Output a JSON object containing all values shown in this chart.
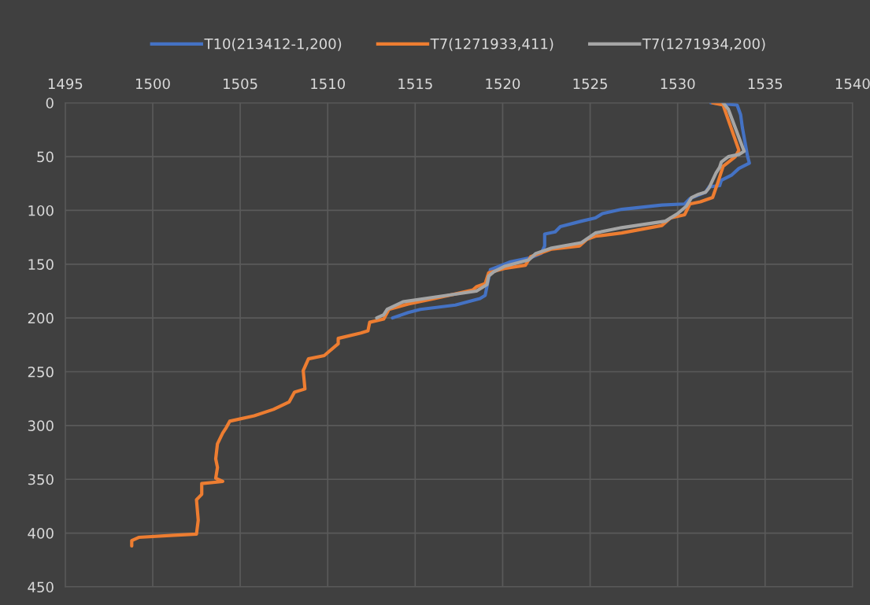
{
  "chart_data": {
    "type": "line",
    "legend": "top",
    "grid": true,
    "marker": "none",
    "line_style": "solid",
    "xlim": [
      1495,
      1540
    ],
    "xticks": [
      1495,
      1500,
      1505,
      1510,
      1515,
      1520,
      1525,
      1530,
      1535,
      1540
    ],
    "ylim": [
      450,
      0
    ],
    "yticks": [
      0,
      50,
      100,
      150,
      200,
      250,
      300,
      350,
      400,
      450
    ],
    "series": [
      {
        "name": "T10(213412-1,200)",
        "color": "#4472c4",
        "x": [
          1531.9,
          1533.4,
          1533.6,
          1533.7,
          1534.0,
          1534.1,
          1533.5,
          1533.1,
          1532.5,
          1532.4,
          1531.8,
          1531.6,
          1530.7,
          1530.4,
          1529.1,
          1526.8,
          1525.7,
          1525.3,
          1524.5,
          1523.3,
          1523.0,
          1522.4,
          1522.4,
          1522.2,
          1521.6,
          1520.4,
          1519.8,
          1519.3,
          1519.0,
          1518.7,
          1517.3,
          1515.3,
          1514.6,
          1513.7
        ],
        "values": [
          0,
          2,
          11,
          23,
          50,
          56,
          61,
          67,
          72,
          77,
          78,
          83,
          89,
          94,
          95,
          99,
          103,
          107,
          110,
          115,
          120,
          122,
          133,
          140,
          144,
          148,
          152,
          155,
          179,
          182,
          188,
          192,
          195,
          200
        ]
      },
      {
        "name": "T7(1271933,411)",
        "color": "#ed7d31",
        "x": [
          1532.0,
          1532.6,
          1533.5,
          1533.3,
          1532.6,
          1532.3,
          1532.0,
          1531.3,
          1530.7,
          1530.4,
          1529.6,
          1529.1,
          1526.8,
          1525.3,
          1524.8,
          1524.4,
          1522.8,
          1521.6,
          1521.3,
          1520.1,
          1519.2,
          1519.0,
          1518.5,
          1518.3,
          1516.1,
          1514.6,
          1513.5,
          1513.2,
          1512.4,
          1512.3,
          1511.9,
          1510.6,
          1510.6,
          1509.8,
          1508.9,
          1508.6,
          1508.7,
          1508.1,
          1507.8,
          1506.9,
          1505.8,
          1504.4,
          1504.2,
          1504.0,
          1503.7,
          1503.6,
          1503.7,
          1503.6,
          1504.0,
          1502.8,
          1502.8,
          1502.5,
          1502.6,
          1502.5,
          1501.2,
          1499.2,
          1498.8,
          1498.8
        ],
        "values": [
          0,
          2,
          44,
          50,
          59,
          74,
          88,
          92,
          94,
          104,
          107,
          114,
          121,
          124,
          127,
          133,
          136,
          143,
          151,
          154,
          158,
          168,
          171,
          174,
          182,
          187,
          192,
          201,
          204,
          212,
          214,
          219,
          224,
          235,
          238,
          249,
          266,
          269,
          278,
          285,
          291,
          296,
          302,
          307,
          317,
          331,
          339,
          349,
          352,
          354,
          364,
          369,
          388,
          401,
          402,
          404,
          407,
          412
        ]
      },
      {
        "name": "T7(1271934,200)",
        "color": "#a5a5a5",
        "x": [
          1532.6,
          1532.9,
          1533.8,
          1533.5,
          1532.9,
          1532.5,
          1532.4,
          1532.2,
          1531.8,
          1531.6,
          1531.2,
          1530.8,
          1530.5,
          1530.0,
          1529.3,
          1526.8,
          1525.3,
          1524.5,
          1522.8,
          1521.9,
          1521.5,
          1520.1,
          1519.5,
          1519.2,
          1519.1,
          1518.5,
          1516.4,
          1514.3,
          1513.4,
          1513.2,
          1512.8
        ],
        "values": [
          0,
          6,
          45,
          48,
          50,
          55,
          60,
          65,
          79,
          83,
          85,
          88,
          96,
          103,
          110,
          116,
          121,
          130,
          135,
          140,
          146,
          152,
          157,
          161,
          169,
          175,
          180,
          185,
          192,
          197,
          200
        ]
      }
    ]
  }
}
